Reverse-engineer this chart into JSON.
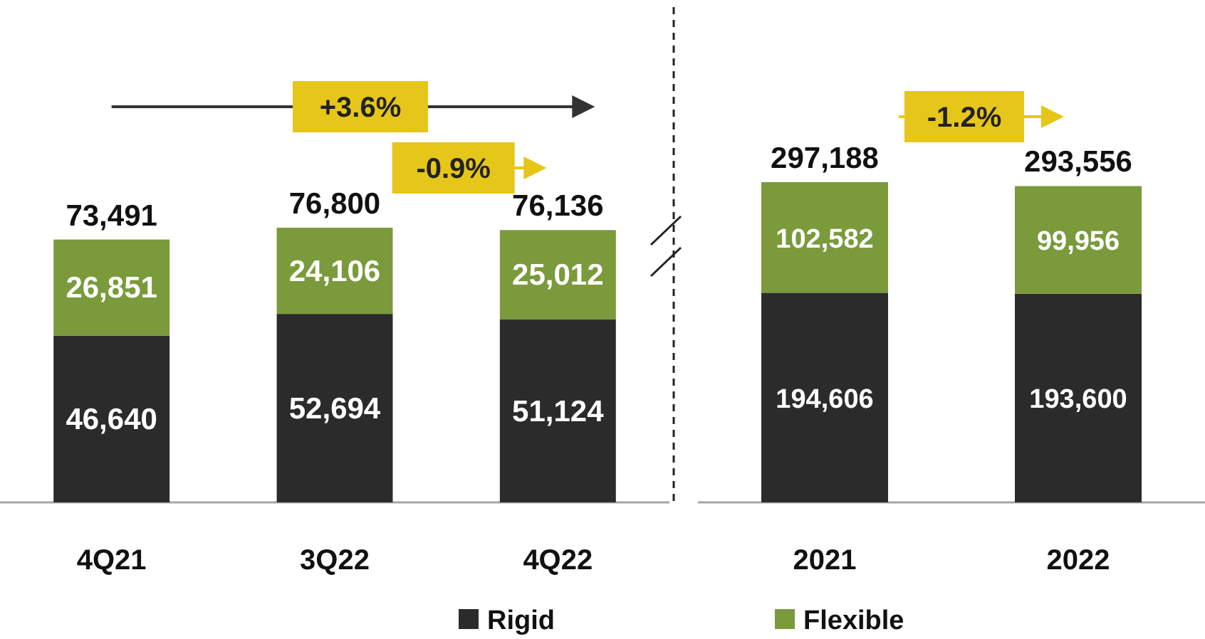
{
  "chart_data": [
    {
      "type": "bar",
      "stacked": true,
      "categories": [
        "4Q21",
        "3Q22",
        "4Q22"
      ],
      "totals": [
        "73,491",
        "76,800",
        "76,136"
      ],
      "legend": "bottom",
      "annotations": [
        "+3.6%",
        "-0.9%"
      ],
      "series": [
        {
          "name": "Rigid",
          "color": "#2b2b2b",
          "values": [
            46640,
            52694,
            51124
          ],
          "value_labels": [
            "46,640",
            "52,694",
            "51,124"
          ]
        },
        {
          "name": "Flexible",
          "color": "#7a9a3c",
          "values": [
            26851,
            24106,
            25012
          ],
          "value_labels": [
            "26,851",
            "24,106",
            "25,012"
          ]
        }
      ]
    },
    {
      "type": "bar",
      "stacked": true,
      "categories": [
        "2021",
        "2022"
      ],
      "totals": [
        "297,188",
        "293,556"
      ],
      "annotations": [
        "-1.2%"
      ],
      "series": [
        {
          "color": "#2b2b2b",
          "values": [
            194606,
            193600
          ],
          "value_labels": [
            "194,606",
            "193,600"
          ]
        },
        {
          "color": "#7a9a3c",
          "values": [
            102582,
            99956
          ],
          "value_labels": [
            "102,582",
            "99,956"
          ]
        }
      ]
    }
  ]
}
